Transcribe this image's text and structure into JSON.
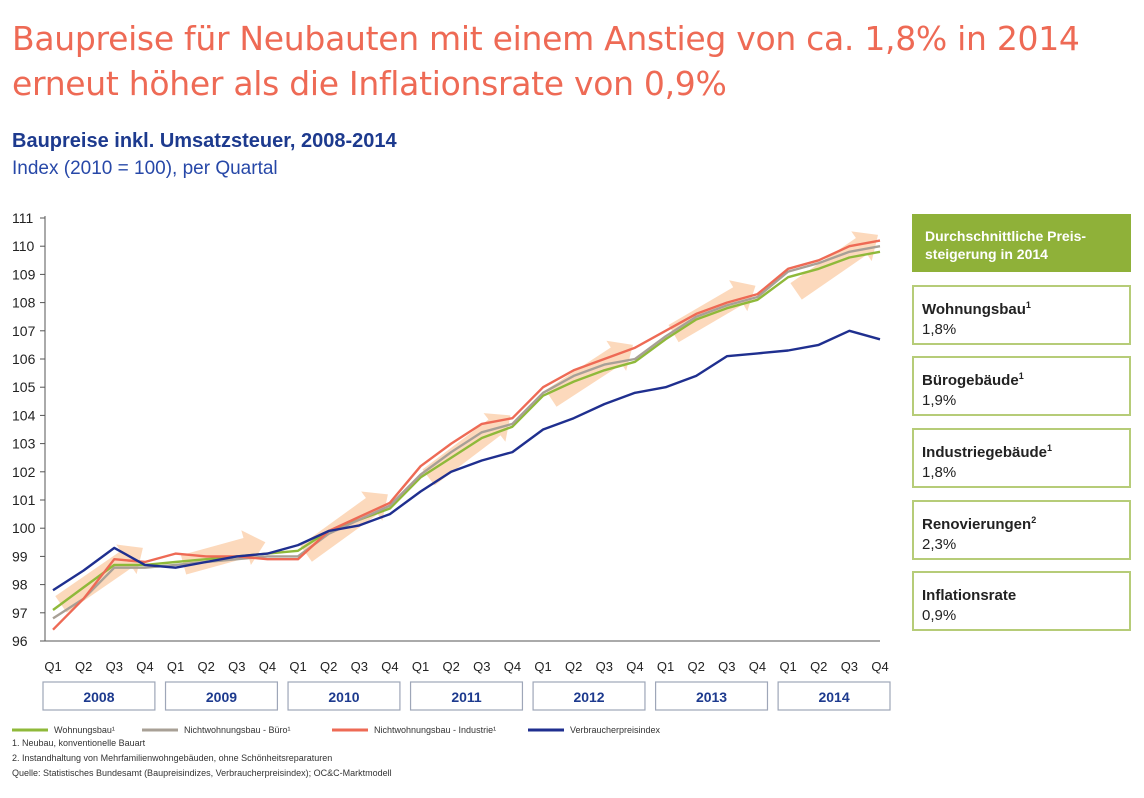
{
  "headline": "Baupreise für Neubauten mit einem Anstieg von ca. 1,8% in 2014 erneut höher als die Inflationsrate von 0,9%",
  "subtitle": "Baupreise inkl. Umsatzsteuer, 2008-2014",
  "subsubtitle": "Index (2010 = 100), per Quartal",
  "sidebar": {
    "header": "Durchschnittliche Preis-steigerung in 2014",
    "items": [
      {
        "label": "Wohnungsbau",
        "sup": "1",
        "value": "1,8%"
      },
      {
        "label": "Bürogebäude",
        "sup": "1",
        "value": "1,9%"
      },
      {
        "label": "Industriegebäude",
        "sup": "1",
        "value": "1,8%"
      },
      {
        "label": "Renovierungen",
        "sup": "2",
        "value": "2,3%"
      },
      {
        "label": "Inflationsrate",
        "sup": "",
        "value": "0,9%"
      }
    ]
  },
  "footnotes": {
    "note1": "1.     Neubau, konventionelle Bauart",
    "note2": "2.     Instandhaltung von Mehrfamilienwohngebäuden, ohne Schönheitsreparaturen",
    "source": "Quelle: Statistisches Bundesamt (Baupreisindizes, Verbraucherpreisindex); OC&C-Marktmodell"
  },
  "colors": {
    "headline": "#ee6a55",
    "title": "#1d3a8e",
    "accent_green": "#8fb139",
    "box_border": "#b6cc78",
    "arrow": "#fcd2b0",
    "year_label": "#1d3a8e"
  },
  "chart_data": {
    "type": "line",
    "ylim": [
      96,
      111
    ],
    "yticks": [
      "96",
      "97",
      "98",
      "99",
      "100",
      "101",
      "102",
      "103",
      "104",
      "105",
      "106",
      "107",
      "108",
      "109",
      "110",
      "111"
    ],
    "quarters": [
      "Q1",
      "Q2",
      "Q3",
      "Q4",
      "Q1",
      "Q2",
      "Q3",
      "Q4",
      "Q1",
      "Q2",
      "Q3",
      "Q4",
      "Q1",
      "Q2",
      "Q3",
      "Q4",
      "Q1",
      "Q2",
      "Q3",
      "Q4",
      "Q1",
      "Q2",
      "Q3",
      "Q4",
      "Q1",
      "Q2",
      "Q3",
      "Q4"
    ],
    "years": [
      "2008",
      "2009",
      "2010",
      "2011",
      "2012",
      "2013",
      "2014"
    ],
    "grid": false,
    "series": [
      {
        "name": "Wohnungsbau¹",
        "color": "#8fb93a",
        "values": [
          97.1,
          97.9,
          98.7,
          98.7,
          98.8,
          98.9,
          99.0,
          99.1,
          99.2,
          99.9,
          100.3,
          100.7,
          101.8,
          102.5,
          103.2,
          103.6,
          104.7,
          105.2,
          105.6,
          105.9,
          106.7,
          107.4,
          107.8,
          108.1,
          108.9,
          109.2,
          109.6,
          109.8
        ]
      },
      {
        "name": "Nichtwohnungsbau - Büro¹",
        "color": "#a8a096",
        "values": [
          96.8,
          97.5,
          98.6,
          98.6,
          98.7,
          98.8,
          98.9,
          99.0,
          99.0,
          99.8,
          100.3,
          100.8,
          101.9,
          102.7,
          103.4,
          103.7,
          104.8,
          105.4,
          105.8,
          106.0,
          106.8,
          107.5,
          107.9,
          108.2,
          109.1,
          109.4,
          109.8,
          110.0
        ]
      },
      {
        "name": "Nichtwohnungsbau - Industrie¹",
        "color": "#ee6a55",
        "values": [
          96.4,
          97.5,
          98.9,
          98.8,
          99.1,
          99.0,
          99.0,
          98.9,
          98.9,
          99.9,
          100.4,
          100.9,
          102.2,
          103.0,
          103.7,
          103.9,
          105.0,
          105.6,
          106.0,
          106.4,
          107.0,
          107.6,
          108.0,
          108.3,
          109.2,
          109.5,
          110.0,
          110.2
        ]
      },
      {
        "name": "Verbraucherpreisindex",
        "color": "#1f2f8f",
        "values": [
          97.8,
          98.5,
          99.3,
          98.7,
          98.6,
          98.8,
          99.0,
          99.1,
          99.4,
          99.9,
          100.1,
          100.5,
          101.3,
          102.0,
          102.4,
          102.7,
          103.5,
          103.9,
          104.4,
          104.8,
          105.0,
          105.4,
          106.1,
          106.2,
          106.3,
          106.5,
          107.0,
          106.7
        ]
      }
    ]
  }
}
